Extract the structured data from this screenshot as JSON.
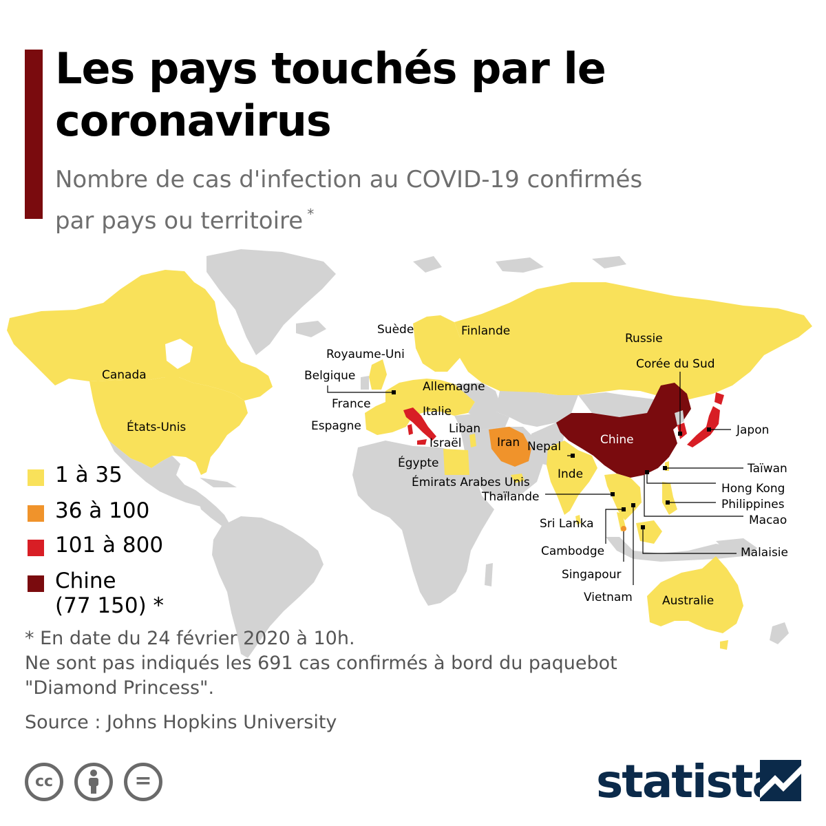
{
  "title": "Les pays touchés par le coronavirus",
  "subtitle": "Nombre de cas d'infection au COVID-19 confirmés par pays ou territoire",
  "subtitle_mark": "*",
  "colors": {
    "accent": "#7a0b0e",
    "no_data": "#d3d3d3",
    "cat1": "#f9e15a",
    "cat2": "#f0932b",
    "cat3": "#d81e25",
    "china": "#7a0b0e",
    "brand": "#0b2a4a"
  },
  "legend": [
    {
      "label": "1 à 35",
      "color": "#f9e15a"
    },
    {
      "label": "36 à 100",
      "color": "#f0932b"
    },
    {
      "label": "101 à 800",
      "color": "#d81e25"
    },
    {
      "label": "Chine",
      "label2": "(77 150) *",
      "color": "#7a0b0e"
    }
  ],
  "map_labels": {
    "canada": "Canada",
    "usa": "États-Unis",
    "suede": "Suède",
    "finlande": "Finlande",
    "russie": "Russie",
    "royaume_uni": "Royaume-Uni",
    "belgique": "Belgique",
    "allemagne": "Allemagne",
    "france": "France",
    "espagne": "Espagne",
    "italie": "Italie",
    "liban": "Liban",
    "israel": "Israël",
    "iran": "Iran",
    "nepal": "Nepal",
    "egypte": "Égypte",
    "emirats": "Émirats Arabes Unis",
    "inde": "Inde",
    "chine": "Chine",
    "coree": "Corée du Sud",
    "japon": "Japon",
    "taiwan": "Taïwan",
    "hong_kong": "Hong Kong",
    "philippines": "Philippines",
    "macao": "Macao",
    "thailande": "Thaïlande",
    "sri_lanka": "Sri Lanka",
    "cambodge": "Cambodge",
    "malaisie": "Malaisie",
    "singapour": "Singapour",
    "vietnam": "Vietnam",
    "australie": "Australie"
  },
  "note_line1": "* En date du 24 février 2020 à 10h.",
  "note_line2": "Ne sont pas indiqués les 691 cas confirmés à bord du paquebot",
  "note_line3": "\"Diamond Princess\".",
  "source": "Source : Johns Hopkins University",
  "license_icons": [
    "cc-icon",
    "attribution-icon",
    "no-derivatives-icon"
  ],
  "license_text": {
    "cc": "cc",
    "nd": "="
  },
  "brand": "statista"
}
